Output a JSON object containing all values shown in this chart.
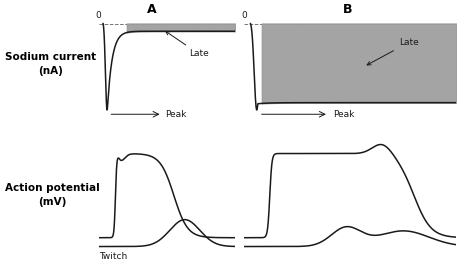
{
  "title_A": "A",
  "title_B": "B",
  "ylabel_top": "Sodium current\n(nA)",
  "ylabel_bottom": "Action potential\n(mV)",
  "label_twitch": "Twitch",
  "label_late_A": "Late",
  "label_late_B": "Late",
  "label_peak_A": "Peak",
  "label_peak_B": "Peak",
  "label_zero": "0",
  "gray_fill": "#9a9a9a",
  "line_color": "#1a1a1a",
  "background": "#ffffff",
  "dashed_color": "#777777"
}
